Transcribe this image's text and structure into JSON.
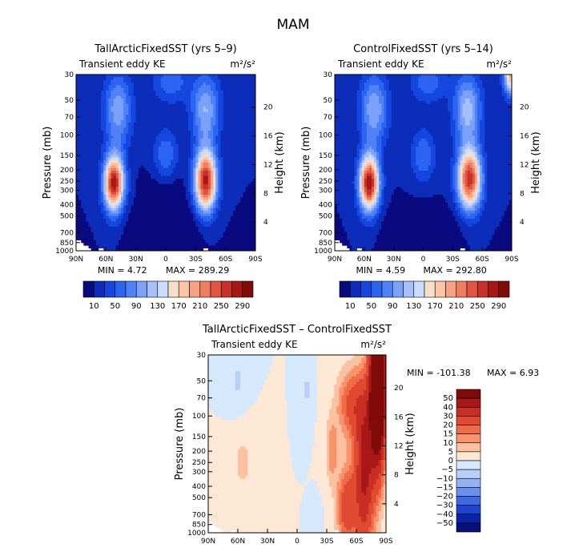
{
  "figure_title": "MAM",
  "pressure_ticks": [
    "30",
    "50",
    "70",
    "100",
    "150",
    "200",
    "250",
    "300",
    "400",
    "500",
    "700",
    "850",
    "1000"
  ],
  "height_ticks": [
    "4",
    "8",
    "12",
    "16",
    "20"
  ],
  "lat_ticks": [
    "90N",
    "60N",
    "30N",
    "0",
    "30S",
    "60S",
    "90S"
  ],
  "labels": {
    "ylabel": "Pressure (mb)",
    "ylabel2": "Height (km)",
    "subtitle": "Transient eddy KE",
    "units": "m²/s²"
  },
  "chart_data": [
    {
      "type": "heatmap",
      "title": "TallArcticFixedSST (yrs 5–9)",
      "subtitle": "Transient eddy KE",
      "units": "m²/s²",
      "xlabel": "",
      "ylabel": "Pressure (mb)",
      "ylabel_right": "Height (km)",
      "x_range": [
        "90N",
        "90S"
      ],
      "y_range": [
        1000,
        30
      ],
      "min_label": "MIN = 4.72",
      "max_label": "MAX = 289.29",
      "min": 4.72,
      "max": 289.29,
      "colorbar_levels": [
        "10",
        "50",
        "90",
        "130",
        "170",
        "210",
        "250",
        "290"
      ],
      "jet_maxima": [
        {
          "lat": -40,
          "p": 250,
          "value": 270
        },
        {
          "lat": 52,
          "p": 250,
          "value": 289.29
        }
      ]
    },
    {
      "type": "heatmap",
      "title": "ControlFixedSST (yrs 5–14)",
      "subtitle": "Transient eddy KE",
      "units": "m²/s²",
      "xlabel": "",
      "ylabel": "Pressure (mb)",
      "ylabel_right": "Height (km)",
      "x_range": [
        "90N",
        "90S"
      ],
      "y_range": [
        1000,
        30
      ],
      "min_label": "MIN = 4.59",
      "max_label": "MAX = 292.80",
      "min": 4.59,
      "max": 292.8,
      "colorbar_levels": [
        "10",
        "50",
        "90",
        "130",
        "170",
        "210",
        "250",
        "290"
      ],
      "jet_maxima": [
        {
          "lat": -47,
          "p": 250,
          "value": 262
        },
        {
          "lat": 55,
          "p": 250,
          "value": 292.8
        }
      ]
    },
    {
      "type": "heatmap",
      "title": "TallArcticFixedSST – ControlFixedSST",
      "subtitle": "Transient eddy KE",
      "units": "m²/s²",
      "xlabel": "",
      "ylabel": "Pressure (mb)",
      "ylabel_right": "Height (km)",
      "x_range": [
        "90N",
        "90S"
      ],
      "y_range": [
        1000,
        30
      ],
      "min_label": "MIN = -101.38",
      "max_label": "MAX = 6.93",
      "min": -101.38,
      "max": 6.93,
      "colorbar_levels": [
        "50",
        "40",
        "30",
        "20",
        "15",
        "10",
        "5",
        "0",
        "−5",
        "−10",
        "−15",
        "−20",
        "−30",
        "−40",
        "−50"
      ]
    }
  ],
  "colors": {
    "seq": [
      "#0a0a80",
      "#0c2cba",
      "#1446e0",
      "#2d64f2",
      "#4f82f7",
      "#7aa2fa",
      "#a5c0fb",
      "#cddcfc",
      "#f5dfc8",
      "#fbc5a6",
      "#f8a283",
      "#f07d60",
      "#df5540",
      "#c83028",
      "#a81616",
      "#800a0a"
    ],
    "diff": [
      "#800a0a",
      "#a81818",
      "#c92e24",
      "#e04a30",
      "#f06c48",
      "#f8946c",
      "#fbc1a0",
      "#fde8d6",
      "#d6e8fb",
      "#b8cff8",
      "#93b2f3",
      "#6b8fed",
      "#3f69e4",
      "#1c45cf",
      "#0b23a5",
      "#08107a"
    ]
  }
}
